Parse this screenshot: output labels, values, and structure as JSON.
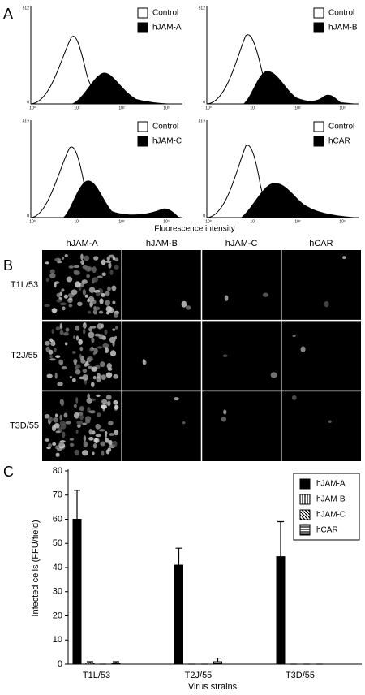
{
  "panel_a": {
    "label": "A",
    "plots": [
      {
        "legend": [
          "Control",
          "hJAM-A"
        ]
      },
      {
        "legend": [
          "Control",
          "hJAM-B"
        ]
      },
      {
        "legend": [
          "Control",
          "hJAM-C"
        ]
      },
      {
        "legend": [
          "Control",
          "hCAR"
        ]
      }
    ],
    "xticks": [
      "10⁰",
      "10¹",
      "10²",
      "10³"
    ],
    "yticks": [
      "512",
      "0"
    ],
    "xlabel": "Fluorescence intensity"
  },
  "panel_b": {
    "label": "B",
    "columns": [
      "hJAM-A",
      "hJAM-B",
      "hJAM-C",
      "hCAR"
    ],
    "rows": [
      "T1L/53",
      "T2J/55",
      "T3D/55"
    ]
  },
  "panel_c": {
    "label": "C"
  },
  "chart_data": {
    "type": "bar",
    "ylabel": "Infected cells (FFU/field)",
    "xlabel": "Virus strains",
    "categories": [
      "T1L/53",
      "T2J/55",
      "T3D/55"
    ],
    "series": [
      {
        "name": "hJAM-A",
        "color": "#000000",
        "pattern": "solid",
        "values": [
          60,
          41,
          44.5
        ],
        "errors": [
          12,
          7,
          14.5
        ]
      },
      {
        "name": "hJAM-B",
        "color": "#000000",
        "pattern": "vertical",
        "values": [
          0.5,
          0,
          0
        ],
        "errors": [
          0.5,
          0,
          0
        ]
      },
      {
        "name": "hJAM-C",
        "color": "#000000",
        "pattern": "diagonal",
        "values": [
          0,
          0,
          0
        ],
        "errors": [
          0,
          0,
          0
        ]
      },
      {
        "name": "hCAR",
        "color": "#000000",
        "pattern": "horizontal",
        "values": [
          0.5,
          1,
          0
        ],
        "errors": [
          0.5,
          1.5,
          0
        ]
      }
    ],
    "ylim": [
      0,
      80
    ],
    "yticks": [
      0,
      10,
      20,
      30,
      40,
      50,
      60,
      70,
      80
    ],
    "legend": "top-right"
  }
}
